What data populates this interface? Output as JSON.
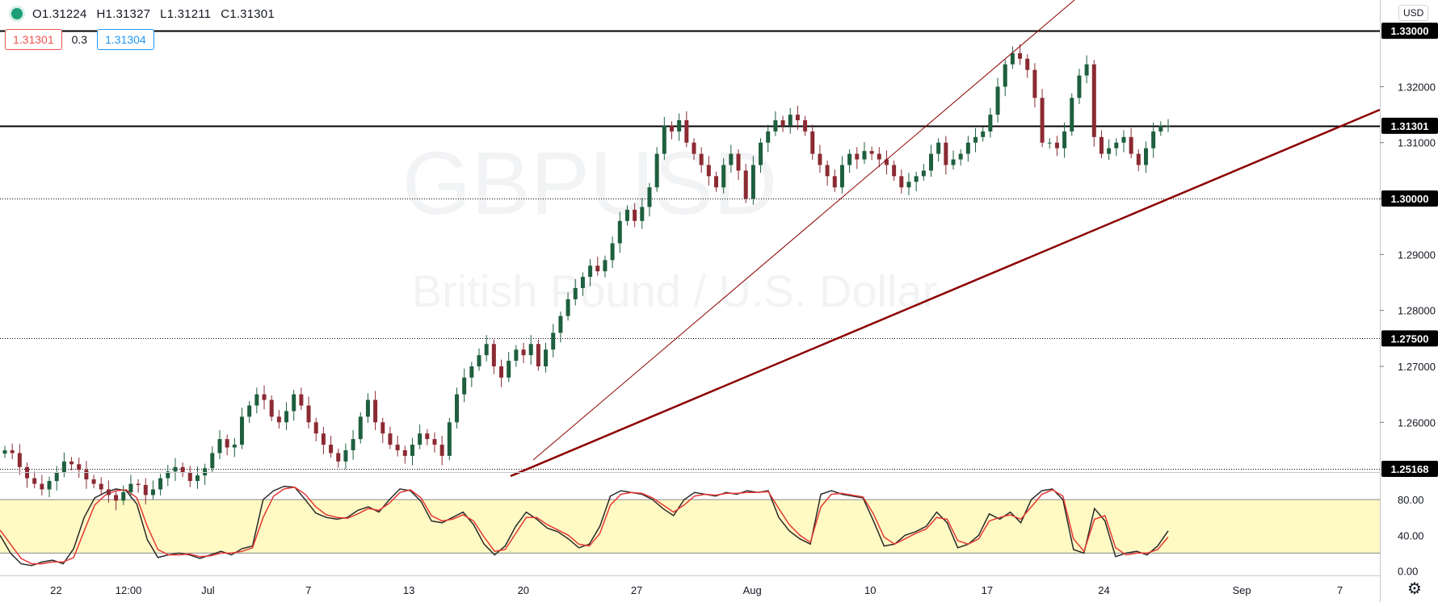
{
  "header": {
    "ohlc": [
      "O1.31224",
      "H1.31327",
      "L1.31211",
      "C1.31301"
    ],
    "bid": "1.31301",
    "spread": "0.3",
    "ask": "1.31304",
    "currency": "USD"
  },
  "colors": {
    "up": "#1e5f3e",
    "down": "#8b2a32",
    "osc_k": "#2a2a2a",
    "osc_d": "#e53935",
    "band": "#fff9c4",
    "trend": "#8b0000",
    "accent": "#1b9e77"
  },
  "icons": {
    "status": "green-dot-icon",
    "settings": "gear-icon"
  },
  "chart_data": {
    "type": "candlestick",
    "symbol_watermark": "GBPUSD",
    "watermark_sub": "British Pound / U.S. Dollar",
    "y_ticks": [
      "1.26000",
      "1.27000",
      "1.28000",
      "1.29000",
      "1.30000",
      "1.31000",
      "1.32000"
    ],
    "ylim": [
      1.2511,
      1.3355
    ],
    "x_ticks": [
      {
        "label": "22",
        "x": 0.048
      },
      {
        "label": "12:00",
        "x": 0.11
      },
      {
        "label": "Jul",
        "x": 0.178
      },
      {
        "label": "7",
        "x": 0.264
      },
      {
        "label": "13",
        "x": 0.35
      },
      {
        "label": "20",
        "x": 0.448
      },
      {
        "label": "27",
        "x": 0.545
      },
      {
        "label": "Aug",
        "x": 0.644
      },
      {
        "label": "10",
        "x": 0.745
      },
      {
        "label": "17",
        "x": 0.845
      },
      {
        "label": "24",
        "x": 0.945
      },
      {
        "label": "Sep",
        "x": 1.063
      },
      {
        "label": "7",
        "x": 1.147
      }
    ],
    "price_labels": [
      {
        "label": "1.33000",
        "value": 1.33,
        "style": "solid"
      },
      {
        "label": "1.31301",
        "value": 1.31301,
        "style": "solid"
      },
      {
        "label": "1.30000",
        "value": 1.3,
        "style": "dotted"
      },
      {
        "label": "1.27500",
        "value": 1.275,
        "style": "dotted"
      },
      {
        "label": "1.25168",
        "value": 1.25168,
        "style": "dotted"
      }
    ],
    "closes": [
      1.255,
      1.2545,
      1.252,
      1.25,
      1.249,
      1.248,
      1.2495,
      1.251,
      1.253,
      1.2525,
      1.2515,
      1.2498,
      1.249,
      1.248,
      1.247,
      1.246,
      1.2475,
      1.249,
      1.2488,
      1.247,
      1.248,
      1.25,
      1.2512,
      1.252,
      1.251,
      1.2495,
      1.2505,
      1.2518,
      1.2545,
      1.257,
      1.2555,
      1.256,
      1.261,
      1.263,
      1.265,
      1.264,
      1.261,
      1.26,
      1.262,
      1.265,
      1.263,
      1.26,
      1.258,
      1.256,
      1.2545,
      1.253,
      1.255,
      1.257,
      1.261,
      1.264,
      1.26,
      1.258,
      1.256,
      1.255,
      1.254,
      1.256,
      1.258,
      1.257,
      1.256,
      1.254,
      1.26,
      1.265,
      1.268,
      1.27,
      1.272,
      1.274,
      1.27,
      1.268,
      1.271,
      1.273,
      1.272,
      1.274,
      1.27,
      1.273,
      1.276,
      1.279,
      1.282,
      1.284,
      1.286,
      1.288,
      1.287,
      1.289,
      1.292,
      1.296,
      1.298,
      1.296,
      1.2985,
      1.302,
      1.308,
      1.313,
      1.312,
      1.314,
      1.31,
      1.308,
      1.306,
      1.304,
      1.302,
      1.306,
      1.308,
      1.305,
      1.3,
      1.306,
      1.31,
      1.312,
      1.314,
      1.313,
      1.315,
      1.314,
      1.312,
      1.308,
      1.306,
      1.304,
      1.302,
      1.306,
      1.308,
      1.307,
      1.3085,
      1.308,
      1.307,
      1.306,
      1.304,
      1.302,
      1.303,
      1.304,
      1.305,
      1.308,
      1.31,
      1.306,
      1.307,
      1.308,
      1.31,
      1.311,
      1.312,
      1.315,
      1.32,
      1.324,
      1.326,
      1.325,
      1.323,
      1.318,
      1.31,
      1.31,
      1.309,
      1.312,
      1.318,
      1.322,
      1.324,
      1.311,
      1.308,
      1.309,
      1.31,
      1.311,
      1.308,
      1.306,
      1.309,
      1.312,
      1.313,
      1.313
    ],
    "oscillator": {
      "ticks": [
        "80.00",
        "40.00",
        "0.00"
      ],
      "range": [
        -5,
        110
      ],
      "band": [
        20,
        80
      ],
      "k": [
        40,
        20,
        8,
        6,
        10,
        12,
        8,
        25,
        60,
        82,
        88,
        92,
        90,
        75,
        35,
        15,
        18,
        20,
        18,
        14,
        18,
        22,
        18,
        25,
        28,
        80,
        90,
        95,
        94,
        80,
        65,
        60,
        58,
        60,
        68,
        72,
        66,
        80,
        92,
        90,
        78,
        56,
        54,
        60,
        66,
        52,
        30,
        18,
        28,
        50,
        66,
        58,
        48,
        44,
        36,
        26,
        30,
        50,
        84,
        90,
        88,
        86,
        80,
        70,
        62,
        80,
        88,
        86,
        84,
        88,
        86,
        90,
        88,
        90,
        60,
        45,
        36,
        30,
        86,
        90,
        86,
        84,
        82,
        56,
        28,
        30,
        40,
        44,
        50,
        66,
        54,
        26,
        30,
        40,
        64,
        58,
        66,
        54,
        80,
        90,
        92,
        80,
        24,
        20,
        70,
        56,
        16,
        20,
        22,
        18,
        28,
        45
      ],
      "d": [
        46,
        30,
        14,
        8,
        8,
        10,
        10,
        15,
        45,
        74,
        85,
        90,
        91,
        82,
        50,
        24,
        18,
        18,
        19,
        16,
        17,
        20,
        20,
        22,
        26,
        60,
        84,
        92,
        94,
        86,
        72,
        63,
        60,
        59,
        64,
        70,
        68,
        76,
        88,
        91,
        82,
        62,
        56,
        58,
        63,
        56,
        38,
        22,
        24,
        42,
        60,
        60,
        52,
        46,
        40,
        30,
        28,
        42,
        74,
        86,
        88,
        87,
        82,
        74,
        66,
        74,
        84,
        86,
        85,
        87,
        87,
        88,
        88,
        89,
        70,
        52,
        40,
        32,
        72,
        86,
        87,
        85,
        83,
        64,
        38,
        30,
        36,
        42,
        47,
        60,
        58,
        34,
        30,
        36,
        56,
        60,
        63,
        58,
        72,
        86,
        91,
        84,
        36,
        22,
        58,
        62,
        26,
        18,
        20,
        20,
        24,
        38
      ]
    }
  }
}
